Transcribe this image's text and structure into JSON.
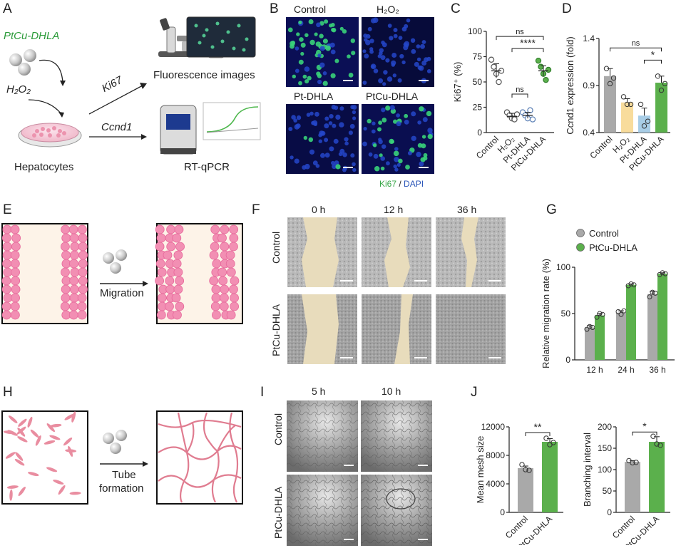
{
  "panels": {
    "A": {
      "label": "A",
      "nanozyme": "PtCu-DHLA",
      "stimulus": "H₂O₂",
      "cells": "Hepatocytes",
      "arrow1": "Ki67",
      "arrow2": "Ccnd1",
      "out1": "Fluorescence images",
      "out2": "RT-qPCR"
    },
    "B": {
      "label": "B",
      "tiles": [
        "Control",
        "H₂O₂",
        "Pt-DHLA",
        "PtCu-DHLA"
      ],
      "legend_ki67": "Ki67",
      "legend_sep": " / ",
      "legend_dapi": "DAPI"
    },
    "C": {
      "label": "C"
    },
    "D": {
      "label": "D"
    },
    "E": {
      "label": "E",
      "caption": "Migration"
    },
    "F": {
      "label": "F",
      "times": [
        "0 h",
        "12 h",
        "36 h"
      ],
      "rows": [
        "Control",
        "PtCu-DHLA"
      ]
    },
    "G": {
      "label": "G"
    },
    "H": {
      "label": "H",
      "caption_line1": "Tube",
      "caption_line2": "formation"
    },
    "I": {
      "label": "I",
      "times": [
        "5 h",
        "10 h"
      ],
      "rows": [
        "Control",
        "PtCu-DHLA"
      ]
    },
    "J": {
      "label": "J"
    }
  },
  "chart_data": [
    {
      "id": "C",
      "type": "scatter",
      "ylabel": "Ki67⁺ (%)",
      "ylim": [
        0,
        100
      ],
      "yticks": [
        "0",
        "25",
        "50",
        "75",
        "100"
      ],
      "categories": [
        "Control",
        "H₂O₂",
        "Pt-DHLA",
        "PtCu-DHLA"
      ],
      "means": [
        61,
        16,
        17,
        61
      ],
      "sem": [
        7,
        3,
        3,
        5
      ],
      "points": [
        [
          72,
          65,
          58,
          50,
          61
        ],
        [
          20,
          17,
          14,
          13,
          18
        ],
        [
          20,
          17,
          14,
          22,
          13
        ],
        [
          71,
          65,
          58,
          52,
          62
        ]
      ],
      "colors": [
        "#8e8e8e",
        "#8e8e8e",
        "#5a7fb5",
        "#5bb04c"
      ],
      "significance": [
        {
          "from": 0,
          "to": 3,
          "label": "ns",
          "level": 95
        },
        {
          "from": 1,
          "to": 3,
          "label": "****",
          "level": 83
        },
        {
          "from": 1,
          "to": 2,
          "label": "ns",
          "level": 38
        }
      ]
    },
    {
      "id": "D",
      "type": "bar",
      "ylabel": "Ccnd1 expression (fold)",
      "ylim": [
        0.4,
        1.4
      ],
      "yticks": [
        "0.4",
        "0.9",
        "1.4"
      ],
      "categories": [
        "Control",
        "H₂O₂",
        "Pt-DHLA",
        "PtCu-DHLA"
      ],
      "values": [
        1.0,
        0.72,
        0.58,
        0.93
      ],
      "sem": [
        0.08,
        0.04,
        0.08,
        0.07
      ],
      "points": [
        [
          1.08,
          0.92,
          0.98
        ],
        [
          0.78,
          0.7,
          0.7
        ],
        [
          0.7,
          0.47,
          0.52
        ],
        [
          1.0,
          0.85,
          0.92
        ]
      ],
      "colors": [
        "#a9a9a9",
        "#f8dc9c",
        "#a8cde6",
        "#5bb04c"
      ],
      "significance": [
        {
          "from": 0,
          "to": 3,
          "label": "ns",
          "level": 1.3
        },
        {
          "from": 2,
          "to": 3,
          "label": "*",
          "level": 1.17
        }
      ]
    },
    {
      "id": "G",
      "type": "bar",
      "ylabel": "Relative migration rate (%)",
      "ylim": [
        0,
        100
      ],
      "yticks": [
        "0",
        "50",
        "100"
      ],
      "categories": [
        "12 h",
        "24 h",
        "36 h"
      ],
      "series": [
        {
          "name": "Control",
          "color": "#a9a9a9",
          "values": [
            35,
            51,
            71
          ],
          "sem": [
            2,
            2,
            3
          ],
          "points": [
            [
              33,
              36,
              35
            ],
            [
              52,
              49,
              53
            ],
            [
              68,
              73,
              72
            ]
          ]
        },
        {
          "name": "PtCu-DHLA",
          "color": "#5bb04c",
          "values": [
            48,
            81,
            93
          ],
          "sem": [
            2,
            1,
            1
          ],
          "points": [
            [
              46,
              50,
              49
            ],
            [
              80,
              82,
              81
            ],
            [
              92,
              94,
              93
            ]
          ]
        }
      ],
      "legend": "top-left"
    },
    {
      "id": "J1",
      "type": "bar",
      "ylabel": "Mean mesh size",
      "ylim": [
        0,
        12000
      ],
      "yticks": [
        "0",
        "4000",
        "8000",
        "12000"
      ],
      "categories": [
        "Control",
        "PtCu-DHLA"
      ],
      "values": [
        6200,
        9900
      ],
      "sem": [
        300,
        450
      ],
      "points": [
        [
          6700,
          6000,
          5900
        ],
        [
          10400,
          9500,
          9800
        ]
      ],
      "colors": [
        "#a9a9a9",
        "#5bb04c"
      ],
      "significance": [
        {
          "from": 0,
          "to": 1,
          "label": "**",
          "level": 11200
        }
      ]
    },
    {
      "id": "J2",
      "type": "bar",
      "ylabel": "Branching interval",
      "ylim": [
        0,
        200
      ],
      "yticks": [
        "0",
        "50",
        "100",
        "150",
        "200"
      ],
      "categories": [
        "Control",
        "PtCu-DHLA"
      ],
      "values": [
        118,
        165
      ],
      "sem": [
        3,
        12
      ],
      "points": [
        [
          121,
          116,
          117
        ],
        [
          178,
          160,
          157
        ]
      ],
      "colors": [
        "#a9a9a9",
        "#5bb04c"
      ],
      "significance": [
        {
          "from": 0,
          "to": 1,
          "label": "*",
          "level": 188
        }
      ]
    }
  ]
}
